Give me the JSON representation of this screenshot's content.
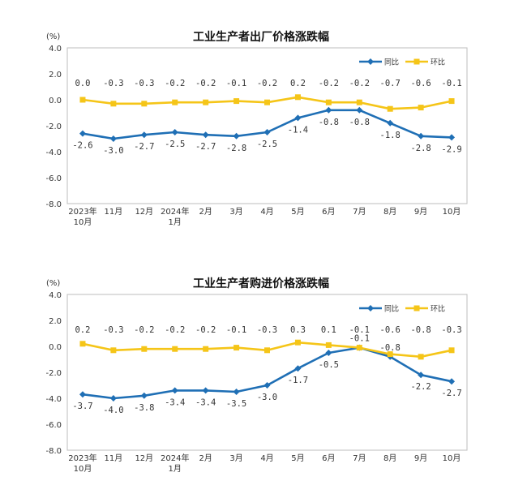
{
  "colors": {
    "yoy": "#1f6fb5",
    "mom": "#f5c518",
    "border": "#bdbdbd"
  },
  "chart_data": [
    {
      "type": "line",
      "title": "工业生产者出厂价格涨跌幅",
      "unit_label": "(%)",
      "ylim": [
        -8.0,
        4.0
      ],
      "yticks": [
        "4.0",
        "2.0",
        "0.0",
        "-2.0",
        "-4.0",
        "-6.0",
        "-8.0"
      ],
      "categories": [
        "2023年\n10月",
        "11月",
        "12月",
        "2024年\n1月",
        "2月",
        "3月",
        "4月",
        "5月",
        "6月",
        "7月",
        "8月",
        "9月",
        "10月"
      ],
      "legend_position": "top-right",
      "grid": false,
      "series": [
        {
          "name": "同比",
          "values": [
            -2.6,
            -3.0,
            -2.7,
            -2.5,
            -2.7,
            -2.8,
            -2.5,
            -1.4,
            -0.8,
            -0.8,
            -1.8,
            -2.8,
            -2.9
          ],
          "labels": [
            "-2.6",
            "-3.0",
            "-2.7",
            "-2.5",
            "-2.7",
            "-2.8",
            "-2.5",
            "-1.4",
            "-0.8",
            "-0.8",
            "-1.8",
            "-2.8",
            "-2.9"
          ]
        },
        {
          "name": "环比",
          "values": [
            0.0,
            -0.3,
            -0.3,
            -0.2,
            -0.2,
            -0.1,
            -0.2,
            0.2,
            -0.2,
            -0.2,
            -0.7,
            -0.6,
            -0.1
          ],
          "labels": [
            "0.0",
            "-0.3",
            "-0.3",
            "-0.2",
            "-0.2",
            "-0.1",
            "-0.2",
            "0.2",
            "-0.2",
            "-0.2",
            "-0.7",
            "-0.6",
            "-0.1"
          ]
        }
      ]
    },
    {
      "type": "line",
      "title": "工业生产者购进价格涨跌幅",
      "unit_label": "(%)",
      "ylim": [
        -8.0,
        4.0
      ],
      "yticks": [
        "4.0",
        "2.0",
        "0.0",
        "-2.0",
        "-4.0",
        "-6.0",
        "-8.0"
      ],
      "categories": [
        "2023年\n10月",
        "11月",
        "12月",
        "2024年\n1月",
        "2月",
        "3月",
        "4月",
        "5月",
        "6月",
        "7月",
        "8月",
        "9月",
        "10月"
      ],
      "legend_position": "top-right",
      "grid": false,
      "series": [
        {
          "name": "同比",
          "values": [
            -3.7,
            -4.0,
            -3.8,
            -3.4,
            -3.4,
            -3.5,
            -3.0,
            -1.7,
            -0.5,
            -0.1,
            -0.8,
            -2.2,
            -2.7
          ],
          "labels": [
            "-3.7",
            "-4.0",
            "-3.8",
            "-3.4",
            "-3.4",
            "-3.5",
            "-3.0",
            "-1.7",
            "-0.5",
            "-0.1",
            "-0.8",
            "-2.2",
            "-2.7"
          ]
        },
        {
          "name": "环比",
          "values": [
            0.2,
            -0.3,
            -0.2,
            -0.2,
            -0.2,
            -0.1,
            -0.3,
            0.3,
            0.1,
            -0.1,
            -0.6,
            -0.8,
            -0.3
          ],
          "labels": [
            "0.2",
            "-0.3",
            "-0.2",
            "-0.2",
            "-0.2",
            "-0.1",
            "-0.3",
            "0.3",
            "0.1",
            "-0.1",
            "-0.6",
            "-0.8",
            "-0.3"
          ]
        }
      ]
    }
  ]
}
